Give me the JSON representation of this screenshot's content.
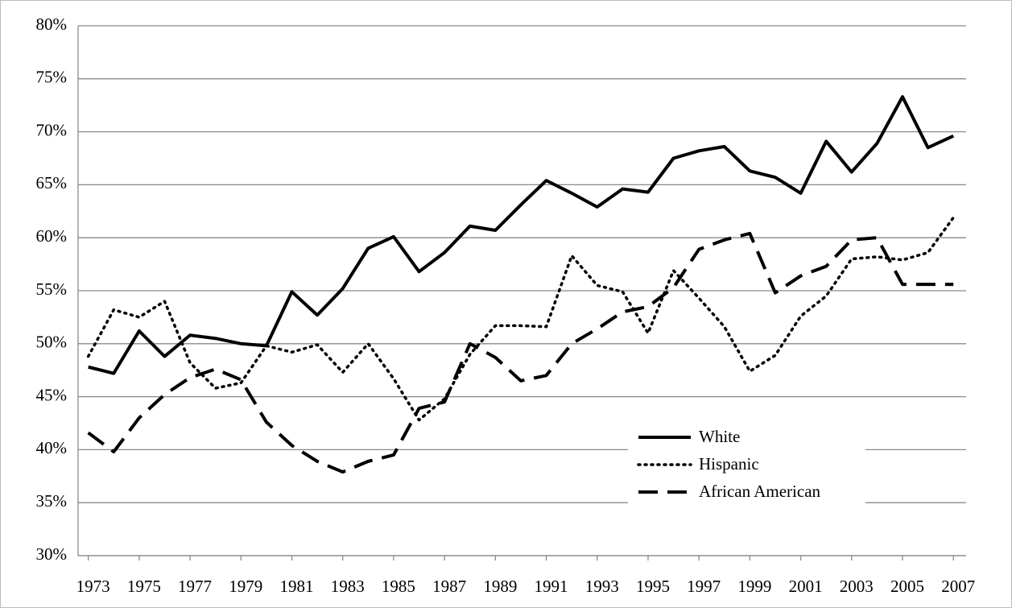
{
  "chart_data": {
    "type": "line",
    "x": [
      1973,
      1974,
      1975,
      1976,
      1977,
      1978,
      1979,
      1980,
      1981,
      1982,
      1983,
      1984,
      1985,
      1986,
      1987,
      1988,
      1989,
      1990,
      1991,
      1992,
      1993,
      1994,
      1995,
      1996,
      1997,
      1998,
      1999,
      2000,
      2001,
      2002,
      2003,
      2004,
      2005,
      2006,
      2007
    ],
    "xlim": [
      1972.6,
      2007.5
    ],
    "xticks": [
      1973,
      1975,
      1977,
      1979,
      1981,
      1983,
      1985,
      1987,
      1989,
      1991,
      1993,
      1995,
      1997,
      1999,
      2001,
      2003,
      2005,
      2007
    ],
    "ylim": [
      30,
      80
    ],
    "yticks": [
      {
        "value": 30,
        "label": "30%"
      },
      {
        "value": 35,
        "label": "35%"
      },
      {
        "value": 40,
        "label": "40%"
      },
      {
        "value": 45,
        "label": "45%"
      },
      {
        "value": 50,
        "label": "50%"
      },
      {
        "value": 55,
        "label": "55%"
      },
      {
        "value": 60,
        "label": "60%"
      },
      {
        "value": 65,
        "label": "65%"
      },
      {
        "value": 70,
        "label": "70%"
      },
      {
        "value": 75,
        "label": "75%"
      },
      {
        "value": 80,
        "label": "80%"
      }
    ],
    "grid": true,
    "legend": "lower right",
    "series": [
      {
        "name": "White",
        "color": "#000000",
        "dash": "solid",
        "values": [
          47.8,
          47.2,
          51.2,
          48.8,
          50.8,
          50.5,
          50.0,
          49.8,
          54.9,
          52.7,
          55.2,
          59.0,
          60.1,
          56.8,
          58.6,
          61.1,
          60.7,
          63.1,
          65.4,
          64.2,
          62.9,
          64.6,
          64.3,
          67.5,
          68.2,
          68.6,
          66.3,
          65.7,
          64.2,
          69.1,
          66.2,
          68.9,
          73.3,
          68.5,
          69.6
        ]
      },
      {
        "name": "Hispanic",
        "color": "#000000",
        "dash": "dotted",
        "values": [
          48.8,
          53.2,
          52.5,
          54.0,
          48.2,
          45.8,
          46.3,
          49.8,
          49.2,
          49.9,
          47.3,
          50.0,
          46.7,
          42.8,
          44.8,
          49.0,
          51.7,
          51.7,
          51.6,
          58.3,
          55.5,
          54.9,
          51.0,
          56.9,
          54.3,
          51.6,
          47.4,
          48.9,
          52.6,
          54.5,
          58.0,
          58.2,
          57.9,
          58.6,
          61.9
        ]
      },
      {
        "name": "African American",
        "color": "#000000",
        "dash": "dashed",
        "values": [
          41.6,
          39.8,
          43.0,
          45.2,
          46.8,
          47.6,
          46.6,
          42.6,
          40.4,
          38.9,
          37.9,
          38.9,
          39.5,
          43.9,
          44.5,
          50.0,
          48.7,
          46.5,
          47.0,
          50.0,
          51.4,
          53.0,
          53.5,
          55.3,
          58.9,
          59.8,
          60.4,
          54.8,
          56.4,
          57.3,
          59.8,
          60.0,
          55.6,
          55.6,
          55.6
        ]
      }
    ]
  }
}
